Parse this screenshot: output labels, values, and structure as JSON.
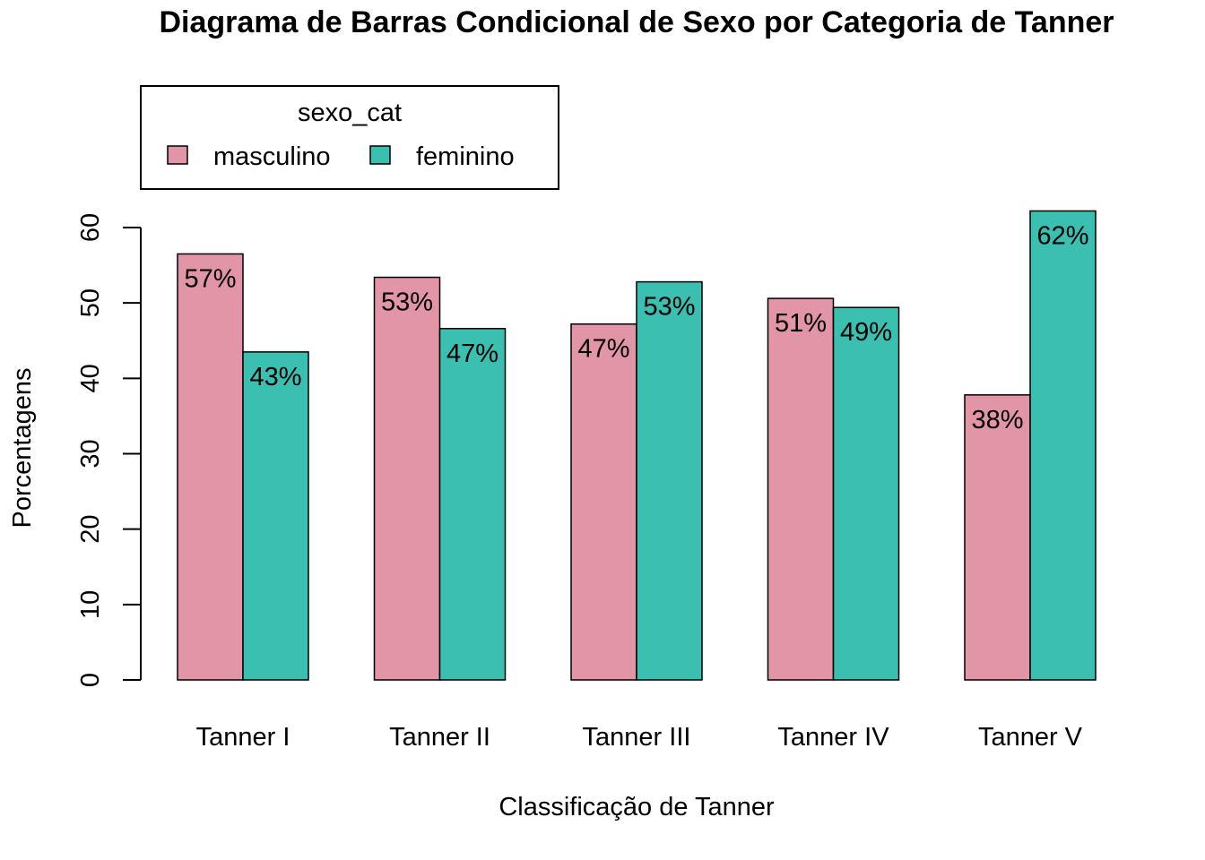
{
  "chart_data": {
    "type": "bar",
    "title": "Diagrama de Barras Condicional de Sexo por Categoria de Tanner",
    "xlabel": "Classificação de Tanner",
    "ylabel": "Porcentagens",
    "categories": [
      "Tanner I",
      "Tanner II",
      "Tanner III",
      "Tanner IV",
      "Tanner V"
    ],
    "series": [
      {
        "name": "masculino",
        "color": "#E295A6",
        "values": [
          56.5,
          53.4,
          47.2,
          50.6,
          37.8
        ],
        "labels": [
          "57%",
          "53%",
          "47%",
          "51%",
          "38%"
        ]
      },
      {
        "name": "feminino",
        "color": "#3BBFB1",
        "values": [
          43.5,
          46.6,
          52.8,
          49.4,
          62.2
        ],
        "labels": [
          "43%",
          "47%",
          "53%",
          "49%",
          "62%"
        ]
      }
    ],
    "legend": {
      "title": "sexo_cat",
      "placement": "top-left"
    },
    "ylim": [
      0,
      60
    ],
    "yticks": [
      0,
      10,
      20,
      30,
      40,
      50,
      60
    ],
    "grid": false
  }
}
